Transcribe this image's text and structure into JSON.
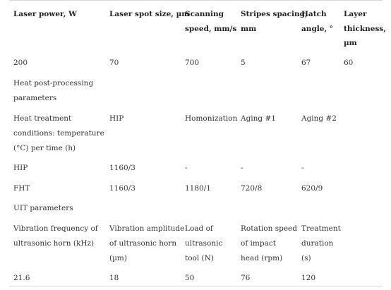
{
  "header": {
    "c1": "Laser power, W",
    "c2": "Laser spot size, µm",
    "c3_l1": "Scanning",
    "c3_l2": "speed, mm/s",
    "c4_l1": "Stripes spacing,",
    "c4_l2": "mm",
    "c5_l1": "Hatch",
    "c5_l2": "angle, °",
    "c6_l1": "Layer",
    "c6_l2": "thickness,",
    "c6_l3": "µm"
  },
  "row_laser": {
    "c1": "200",
    "c2": "70",
    "c3": "700",
    "c4": "5",
    "c5": "67",
    "c6": "60"
  },
  "section_heat": {
    "l1": "Heat post-processing",
    "l2": "parameters"
  },
  "row_heat_conditions": {
    "c1_l1": "Heat treatment",
    "c1_l2": "conditions: temperature",
    "c1_l3": "(°C) per time (h)",
    "c2": "HIP",
    "c3": "Homonization",
    "c4": "Aging #1",
    "c5": "Aging #2"
  },
  "row_hip": {
    "c1": "HIP",
    "c2": "1160/3",
    "c3": "-",
    "c4": "-",
    "c5": "-"
  },
  "row_fht": {
    "c1": "FHT",
    "c2": "1160/3",
    "c3": "1180/1",
    "c4": "720/8",
    "c5": "620/9"
  },
  "section_uit": {
    "l1": "UIT parameters"
  },
  "row_uit_header": {
    "c1_l1": "Vibration frequency of",
    "c1_l2": "ultrasonic horn (kHz)",
    "c2_l1": "Vibration amplitude",
    "c2_l2": "of ultrasonic horn",
    "c2_l3": "(µm)",
    "c3_l1": "Load of",
    "c3_l2": "ultrasonic",
    "c3_l3": "tool (N)",
    "c4_l1": "Rotation speed",
    "c4_l2": "of impact",
    "c4_l3": "head (rpm)",
    "c5_l1": "Treatment",
    "c5_l2": "duration",
    "c5_l3": "(s)"
  },
  "row_uit_values": {
    "c1": "21.6",
    "c2": "18",
    "c3": "50",
    "c4": "76",
    "c5": "120"
  }
}
